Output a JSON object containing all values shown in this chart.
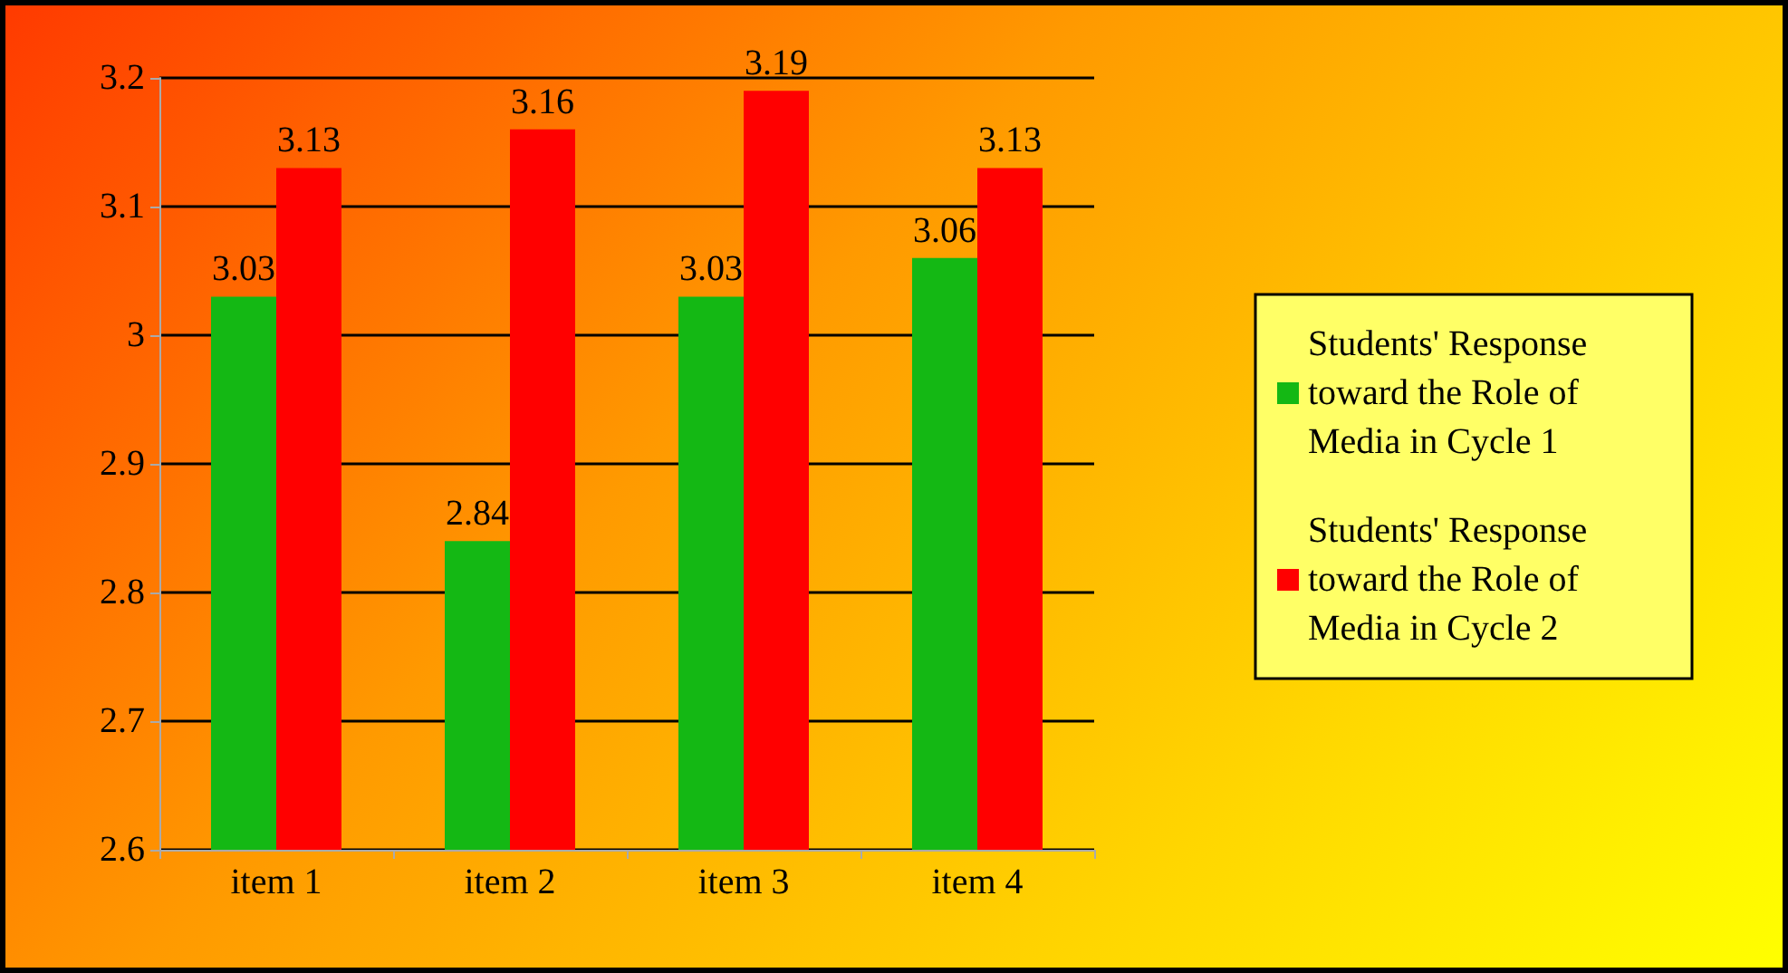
{
  "chart_data": {
    "type": "bar",
    "categories": [
      "item 1",
      "item 2",
      "item 3",
      "item 4"
    ],
    "series": [
      {
        "name": "Students' Response toward the Role of Media in Cycle 1",
        "color": "#14b814",
        "values": [
          3.03,
          2.84,
          3.03,
          3.06
        ]
      },
      {
        "name": "Students' Response toward the Role of Media in Cycle 2",
        "color": "#ff0000",
        "values": [
          3.13,
          3.16,
          3.19,
          3.13
        ]
      }
    ],
    "ylim": [
      2.6,
      3.2
    ],
    "yticks": [
      2.6,
      2.7,
      2.8,
      2.9,
      3,
      3.1,
      3.2
    ],
    "grid": "y",
    "legend": "right",
    "data_labels": true
  }
}
